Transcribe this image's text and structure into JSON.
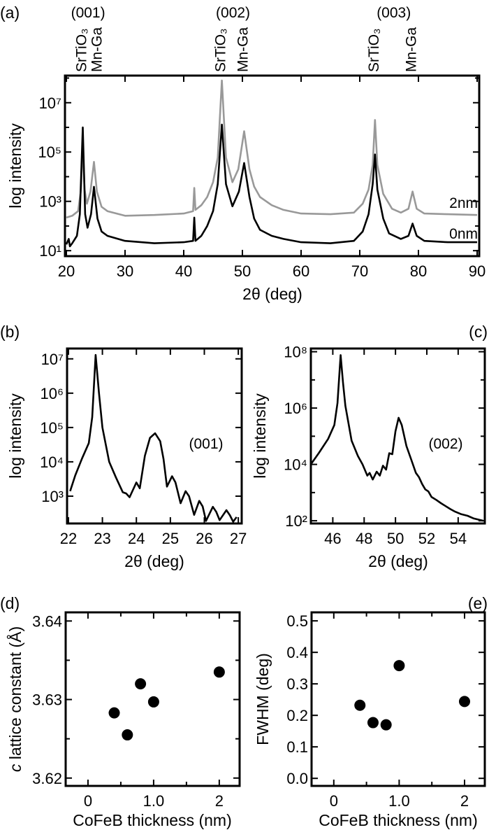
{
  "colors": {
    "axis": "#000000",
    "series_0nm": "#000000",
    "series_2nm": "#999999"
  },
  "chart_data": [
    {
      "id": "a",
      "panel_label": "(a)",
      "type": "line",
      "xlabel": "2θ (deg)",
      "ylabel": "log intensity",
      "yscale": "log",
      "xlim": [
        19.76,
        90.36
      ],
      "ylim": [
        6,
        126000000
      ],
      "xticks": [
        20,
        30,
        40,
        50,
        60,
        70,
        80,
        90
      ],
      "xtick_labels": [
        "20",
        "30",
        "40",
        "50",
        "60",
        "70",
        "80",
        "90"
      ],
      "yticks": [
        10,
        100,
        1000,
        10000,
        100000,
        1000000,
        10000000,
        100000000
      ],
      "ytick_labels": [
        "10¹",
        "",
        "10³",
        "",
        "10⁵",
        "",
        "10⁷",
        ""
      ],
      "peak_groups": [
        {
          "label": "(001)",
          "x": 23.7,
          "peaks": [
            {
              "label": "SrTiO₃",
              "x": 22.8
            },
            {
              "label": "Mn-Ga",
              "x": 24.6
            }
          ]
        },
        {
          "label": "(002)",
          "x": 48.4,
          "peaks": [
            {
              "label": "SrTiO₃",
              "x": 46.5
            },
            {
              "label": "Mn-Ga",
              "x": 50.3
            }
          ]
        },
        {
          "label": "(003)",
          "x": 75.8,
          "peaks": [
            {
              "label": "SrTiO₃",
              "x": 72.6
            },
            {
              "label": "Mn-Ga",
              "x": 79.0
            }
          ]
        }
      ],
      "series": [
        {
          "name": "2nm",
          "color": "#999999",
          "points": [
            [
              20,
              220
            ],
            [
              21,
              260
            ],
            [
              22,
              400
            ],
            [
              22.5,
              3000
            ],
            [
              22.8,
              250000
            ],
            [
              23.1,
              3000
            ],
            [
              23.5,
              800
            ],
            [
              24.1,
              2500
            ],
            [
              24.7,
              40000
            ],
            [
              25.2,
              2500
            ],
            [
              26,
              600
            ],
            [
              27,
              400
            ],
            [
              30,
              260
            ],
            [
              35,
              280
            ],
            [
              40,
              320
            ],
            [
              41.6,
              400
            ],
            [
              41.8,
              3500
            ],
            [
              42,
              450
            ],
            [
              43,
              700
            ],
            [
              44,
              1500
            ],
            [
              45,
              6000
            ],
            [
              45.8,
              60000
            ],
            [
              46.5,
              80000000
            ],
            [
              47.2,
              60000
            ],
            [
              48.3,
              6000
            ],
            [
              49.3,
              20000
            ],
            [
              50.3,
              700000
            ],
            [
              51.2,
              20000
            ],
            [
              52,
              4000
            ],
            [
              53,
              1500
            ],
            [
              55,
              700
            ],
            [
              57,
              450
            ],
            [
              60,
              320
            ],
            [
              65,
              300
            ],
            [
              69,
              350
            ],
            [
              70.5,
              800
            ],
            [
              71.5,
              3000
            ],
            [
              72.2,
              30000
            ],
            [
              72.6,
              2000000
            ],
            [
              73,
              30000
            ],
            [
              74,
              2000
            ],
            [
              75.5,
              500
            ],
            [
              77,
              350
            ],
            [
              78.3,
              500
            ],
            [
              79,
              2500
            ],
            [
              79.7,
              500
            ],
            [
              81,
              320
            ],
            [
              85,
              300
            ],
            [
              90,
              280
            ]
          ]
        },
        {
          "name": "0nm",
          "color": "#000000",
          "points": [
            [
              20,
              18
            ],
            [
              20.4,
              30
            ],
            [
              20.6,
              15
            ],
            [
              21,
              20
            ],
            [
              21.8,
              40
            ],
            [
              22.3,
              300
            ],
            [
              22.8,
              1000000
            ],
            [
              23.2,
              300
            ],
            [
              23.6,
              85
            ],
            [
              24.2,
              300
            ],
            [
              24.7,
              3900
            ],
            [
              25.3,
              200
            ],
            [
              26,
              60
            ],
            [
              27,
              40
            ],
            [
              30,
              25
            ],
            [
              35,
              20
            ],
            [
              40,
              22
            ],
            [
              41.6,
              25
            ],
            [
              41.8,
              220
            ],
            [
              42,
              25
            ],
            [
              43,
              40
            ],
            [
              44,
              100
            ],
            [
              45,
              400
            ],
            [
              45.8,
              5000
            ],
            [
              46.5,
              1300000
            ],
            [
              47.2,
              5000
            ],
            [
              48.3,
              630
            ],
            [
              49.4,
              2500
            ],
            [
              50.3,
              36000
            ],
            [
              51.2,
              1500
            ],
            [
              52,
              200
            ],
            [
              53,
              70
            ],
            [
              55,
              40
            ],
            [
              57,
              30
            ],
            [
              60,
              22
            ],
            [
              65,
              20
            ],
            [
              69,
              25
            ],
            [
              70.5,
              60
            ],
            [
              71.5,
              300
            ],
            [
              72.2,
              5000
            ],
            [
              72.6,
              80000
            ],
            [
              73,
              3000
            ],
            [
              74,
              200
            ],
            [
              75,
              50
            ],
            [
              77,
              30
            ],
            [
              78.3,
              40
            ],
            [
              79,
              125
            ],
            [
              79.7,
              40
            ],
            [
              81,
              25
            ],
            [
              85,
              22
            ],
            [
              90,
              22
            ]
          ]
        }
      ],
      "series_labels": [
        "2nm",
        "0nm"
      ]
    },
    {
      "id": "b",
      "panel_label": "(b)",
      "type": "line",
      "xlabel": "2θ (deg)",
      "ylabel": "log intensity",
      "yscale": "log",
      "xlim": [
        21.96,
        27.1
      ],
      "ylim": [
        160,
        20000000
      ],
      "xticks": [
        22,
        23,
        24,
        25,
        26,
        27
      ],
      "xtick_labels": [
        "22",
        "23",
        "24",
        "25",
        "26",
        "27"
      ],
      "yticks": [
        1000,
        10000,
        100000,
        1000000,
        10000000
      ],
      "ytick_labels": [
        "10³",
        "10⁴",
        "10⁵",
        "10⁶",
        "10⁷"
      ],
      "annotation": "(001)",
      "series": [
        {
          "color": "#000000",
          "points": [
            [
              22.05,
              1400
            ],
            [
              22.2,
              4000
            ],
            [
              22.4,
              12500
            ],
            [
              22.6,
              35000
            ],
            [
              22.7,
              200000
            ],
            [
              22.8,
              13000000
            ],
            [
              22.9,
              1000000
            ],
            [
              23.0,
              100000
            ],
            [
              23.2,
              10000
            ],
            [
              23.4,
              3500
            ],
            [
              23.6,
              1300
            ],
            [
              23.7,
              1200
            ],
            [
              23.8,
              930
            ],
            [
              24.0,
              2500
            ],
            [
              24.1,
              1700
            ],
            [
              24.25,
              15000
            ],
            [
              24.4,
              50000
            ],
            [
              24.55,
              68000
            ],
            [
              24.7,
              40000
            ],
            [
              24.8,
              12000
            ],
            [
              24.9,
              1900
            ],
            [
              25.05,
              3800
            ],
            [
              25.15,
              2500
            ],
            [
              25.3,
              620
            ],
            [
              25.45,
              1400
            ],
            [
              25.55,
              1000
            ],
            [
              25.7,
              285
            ],
            [
              25.85,
              730
            ],
            [
              25.95,
              500
            ],
            [
              26.05,
              190
            ],
            [
              26.25,
              490
            ],
            [
              26.35,
              350
            ],
            [
              26.45,
              200
            ],
            [
              26.65,
              390
            ],
            [
              26.75,
              280
            ],
            [
              26.85,
              180
            ],
            [
              26.95,
              245
            ]
          ]
        }
      ]
    },
    {
      "id": "c",
      "panel_label": "(c)",
      "type": "line",
      "xlabel": "2θ (deg)",
      "ylabel": "log intensity",
      "yscale": "log",
      "xlim": [
        44.6,
        55.7
      ],
      "ylim": [
        80,
        130000000
      ],
      "xticks": [
        46,
        48,
        50,
        52,
        54
      ],
      "xtick_labels": [
        "46",
        "48",
        "50",
        "52",
        "54"
      ],
      "yticks": [
        100,
        1000,
        10000,
        100000,
        1000000,
        10000000,
        100000000
      ],
      "ytick_labels": [
        "10²",
        "",
        "10⁴",
        "",
        "10⁶",
        "",
        "10⁸"
      ],
      "annotation": "(002)",
      "series": [
        {
          "color": "#000000",
          "points": [
            [
              44.65,
              11000
            ],
            [
              45.1,
              25000
            ],
            [
              45.7,
              80000
            ],
            [
              46.1,
              250000
            ],
            [
              46.3,
              1500000
            ],
            [
              46.5,
              76000000
            ],
            [
              46.65,
              8000000
            ],
            [
              46.8,
              1200000
            ],
            [
              47.2,
              70000
            ],
            [
              47.6,
              20000
            ],
            [
              47.9,
              10000
            ],
            [
              48.2,
              4000
            ],
            [
              48.35,
              5000
            ],
            [
              48.55,
              2900
            ],
            [
              48.8,
              5500
            ],
            [
              49.0,
              4000
            ],
            [
              49.2,
              9000
            ],
            [
              49.4,
              6500
            ],
            [
              49.6,
              25000
            ],
            [
              49.8,
              23000
            ],
            [
              50.0,
              150000
            ],
            [
              50.2,
              450000
            ],
            [
              50.4,
              250000
            ],
            [
              50.7,
              45000
            ],
            [
              51.0,
              15000
            ],
            [
              51.3,
              5000
            ],
            [
              51.5,
              3500
            ],
            [
              51.7,
              2000
            ],
            [
              51.9,
              1300
            ],
            [
              52.1,
              1100
            ],
            [
              52.3,
              700
            ],
            [
              52.6,
              550
            ],
            [
              52.9,
              420
            ],
            [
              53.2,
              330
            ],
            [
              53.5,
              260
            ],
            [
              53.8,
              210
            ],
            [
              54.2,
              170
            ],
            [
              54.6,
              150
            ],
            [
              55.0,
              120
            ],
            [
              55.6,
              100
            ]
          ]
        }
      ]
    },
    {
      "id": "d",
      "panel_label": "(d)",
      "type": "scatter",
      "xlabel": "CoFeB thickness (nm)",
      "ylabel_italic": "c",
      "ylabel": " lattice constant (Å)",
      "xlim": [
        -0.34,
        2.31
      ],
      "ylim": [
        3.619,
        3.6411
      ],
      "xticks": [
        0,
        0.5,
        1,
        1.5,
        2
      ],
      "xtick_labels": [
        "0",
        "",
        "1.0",
        "",
        "2"
      ],
      "yticks": [
        3.62,
        3.625,
        3.63,
        3.635,
        3.64
      ],
      "ytick_labels": [
        "3.62",
        "",
        "3.63",
        "",
        "3.64"
      ],
      "x": [
        0.4,
        0.6,
        0.8,
        1.0,
        2.0
      ],
      "y": [
        3.6283,
        3.6255,
        3.632,
        3.6297,
        3.6335
      ]
    },
    {
      "id": "e",
      "panel_label": "(e)",
      "type": "scatter",
      "xlabel": "CoFeB thickness (nm)",
      "ylabel": "FWHM (deg)",
      "xlim": [
        -0.34,
        2.31
      ],
      "ylim": [
        -0.024,
        0.527
      ],
      "xticks": [
        0,
        0.5,
        1,
        1.5,
        2
      ],
      "xtick_labels": [
        "0",
        "",
        "1.0",
        "",
        "2"
      ],
      "yticks": [
        0,
        0.1,
        0.2,
        0.3,
        0.4,
        0.5
      ],
      "ytick_labels": [
        "0.0",
        "0.1",
        "0.2",
        "0.3",
        "0.4",
        "0.5"
      ],
      "x": [
        0.4,
        0.6,
        0.8,
        1.0,
        2.0
      ],
      "y": [
        0.232,
        0.177,
        0.17,
        0.358,
        0.244
      ]
    }
  ]
}
